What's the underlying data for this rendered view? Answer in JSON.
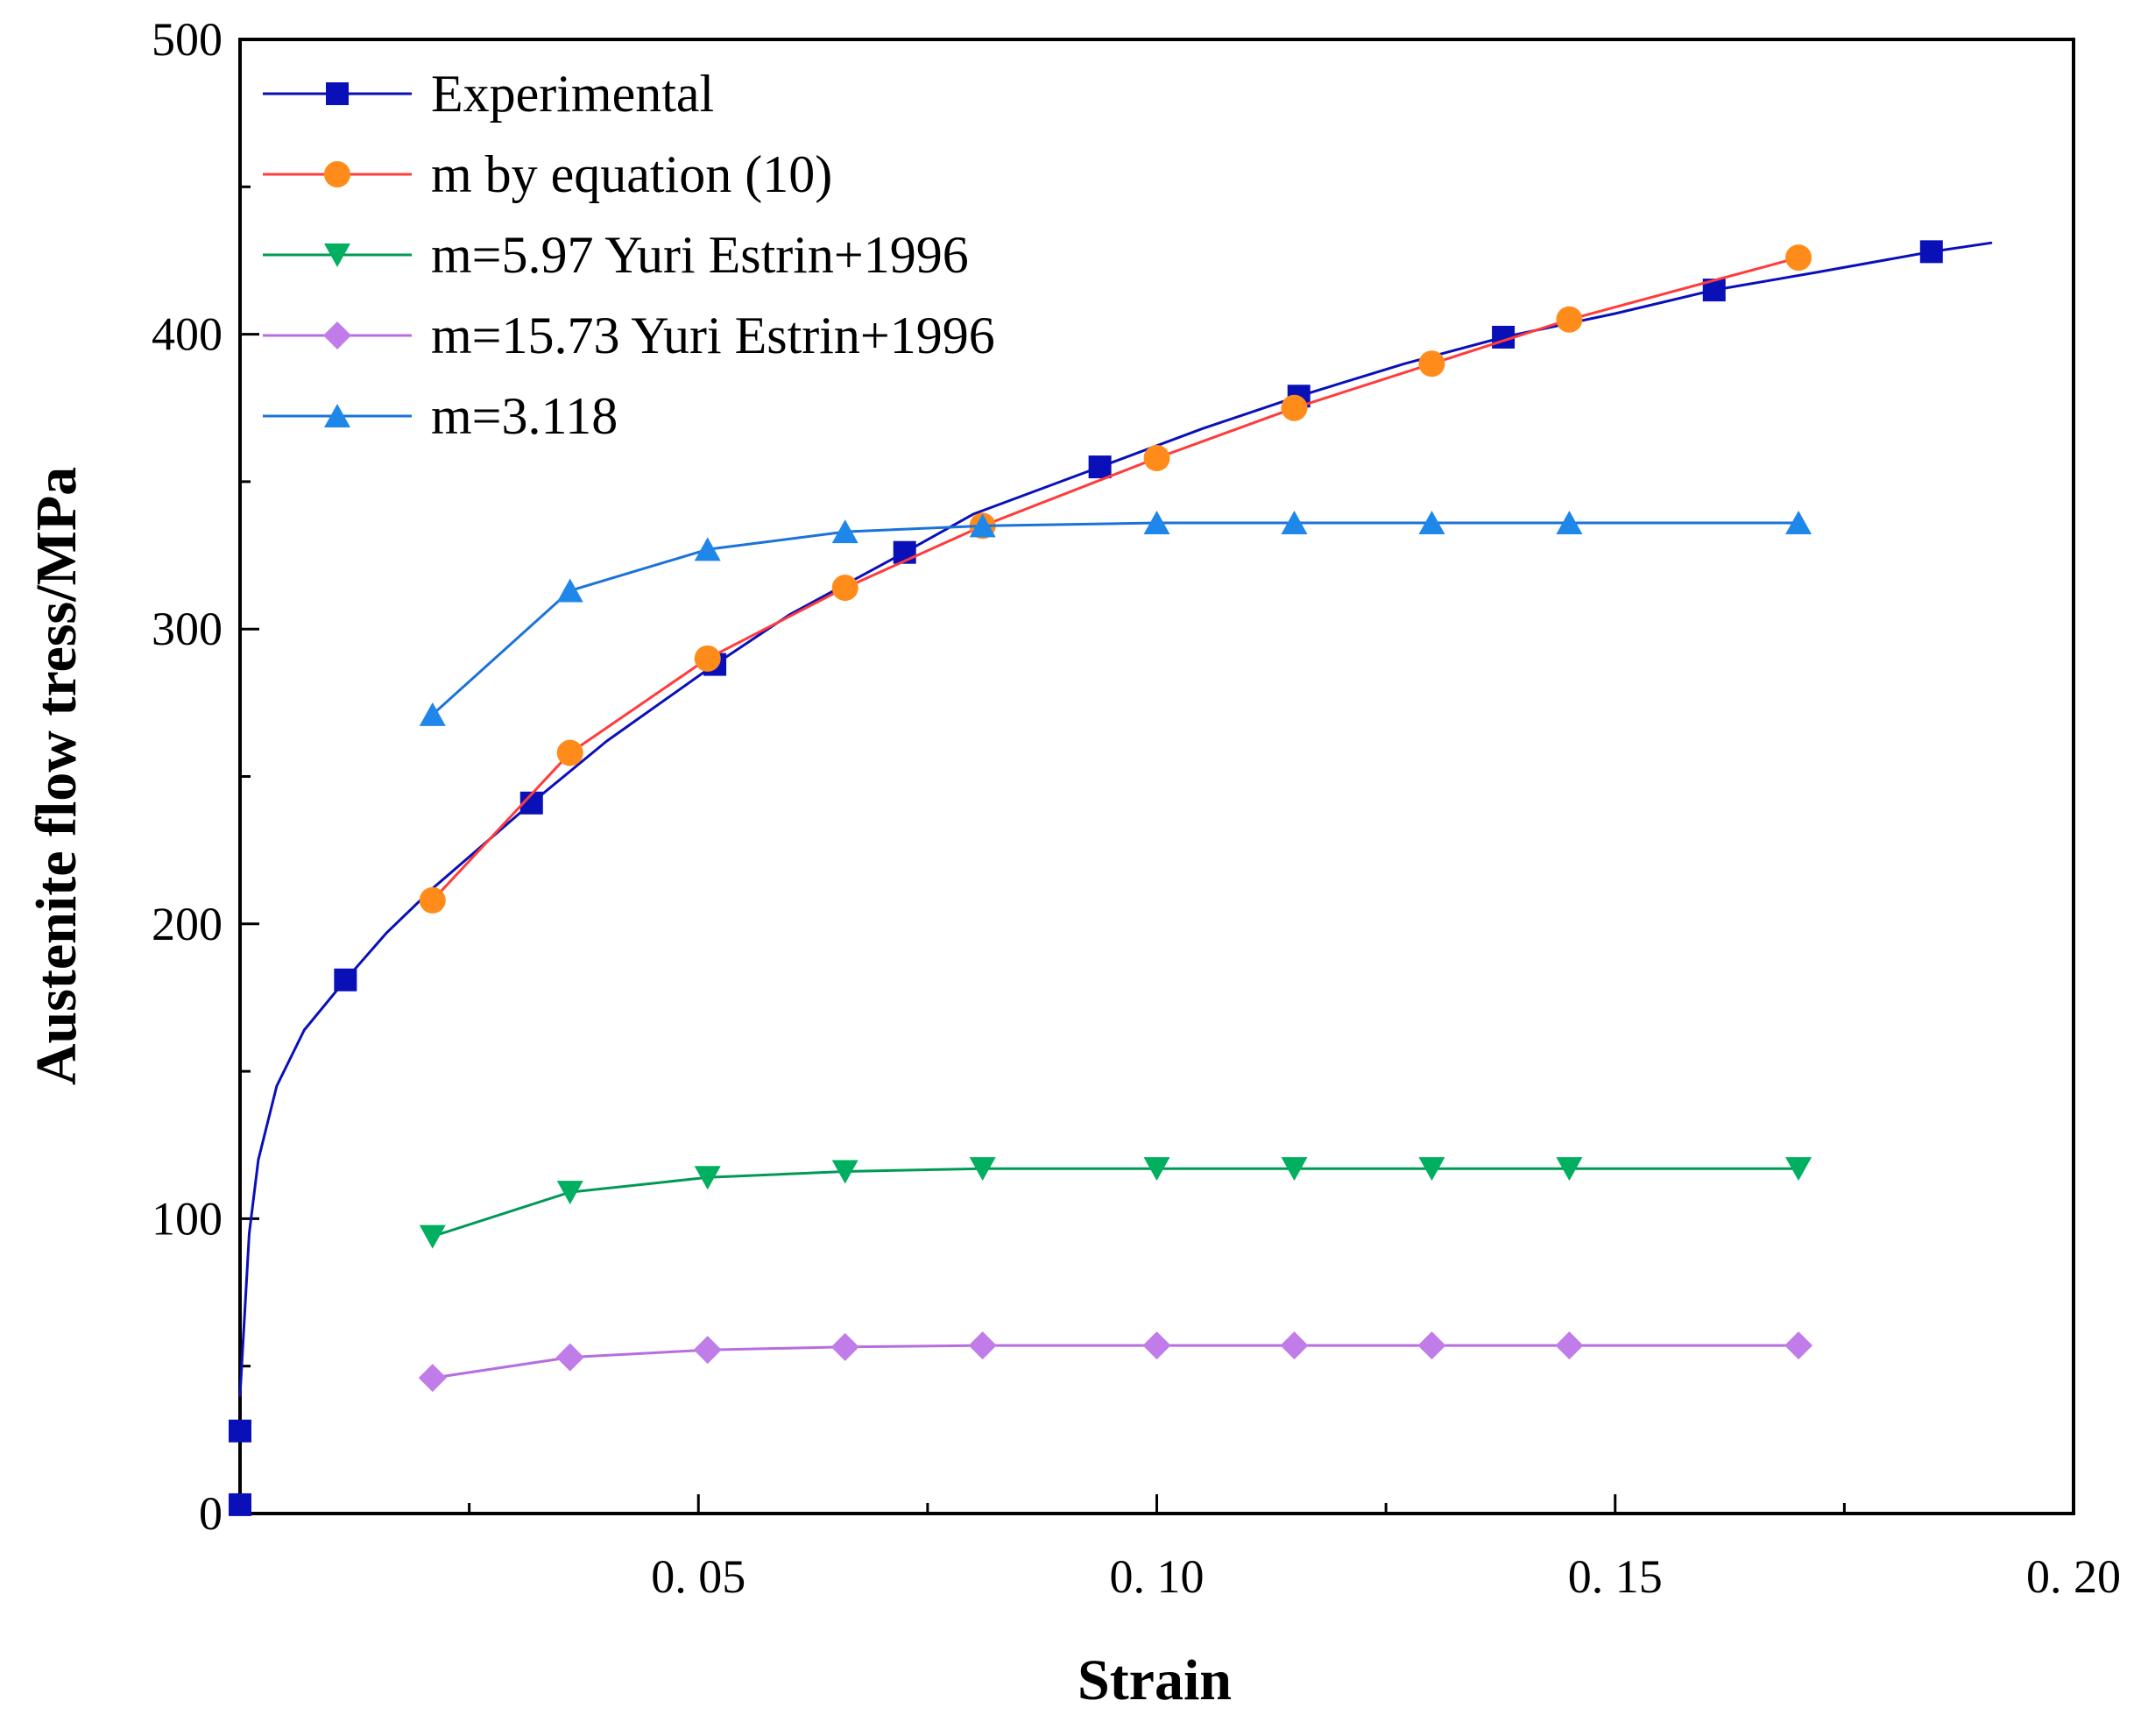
{
  "chart_data": {
    "type": "line",
    "title": "",
    "xlabel": "Strain",
    "ylabel": "Austenite flow tress/MPa",
    "xlim": [
      0,
      0.2
    ],
    "ylim": [
      0,
      500
    ],
    "x_ticks": [
      0.05,
      0.1,
      0.15,
      0.2
    ],
    "x_tick_labels": [
      "0. 05",
      "0. 10",
      "0. 15",
      "0. 20"
    ],
    "y_ticks": [
      0,
      100,
      200,
      300,
      400,
      500
    ],
    "y_tick_labels": [
      "0",
      "100",
      "200",
      "300",
      "400",
      "500"
    ],
    "grid": false,
    "legend_position": "top-left",
    "series": [
      {
        "name": "Experimental",
        "color": "#0a10b8",
        "marker": "square",
        "x": [
          0.0,
          0.0,
          0.0115,
          0.0318,
          0.0518,
          0.0725,
          0.0938,
          0.1155,
          0.1378,
          0.1608,
          0.1845
        ],
        "y": [
          3,
          28,
          181,
          241,
          288,
          326,
          355,
          379,
          399,
          415,
          428
        ],
        "curve_x": [
          0.0,
          0.001,
          0.002,
          0.004,
          0.007,
          0.0115,
          0.016,
          0.021,
          0.0318,
          0.04,
          0.0518,
          0.06,
          0.0725,
          0.08,
          0.0938,
          0.105,
          0.1155,
          0.127,
          0.1378,
          0.15,
          0.1608,
          0.172,
          0.1845,
          0.191
        ],
        "curve_y": [
          40,
          95,
          120,
          145,
          164,
          181,
          197,
          212,
          241,
          262,
          288,
          305,
          326,
          339,
          355,
          368,
          379,
          390,
          399,
          407,
          415,
          421,
          428,
          431
        ]
      },
      {
        "name": "m by equation (10)",
        "color": "#ff3c3c",
        "marker_color": "#ff8c1a",
        "marker": "circle",
        "x": [
          0.021,
          0.036,
          0.051,
          0.066,
          0.081,
          0.1,
          0.115,
          0.13,
          0.145,
          0.17
        ],
        "y": [
          208,
          258,
          290,
          314,
          335,
          358,
          375,
          390,
          405,
          426
        ]
      },
      {
        "name": "m=5.97 Yuri Estrin+1996",
        "color": "#009a55",
        "marker_color": "#00b060",
        "marker": "triangle-down",
        "x": [
          0.021,
          0.036,
          0.051,
          0.066,
          0.081,
          0.1,
          0.115,
          0.13,
          0.145,
          0.17
        ],
        "y": [
          94,
          109,
          114,
          116,
          117,
          117,
          117,
          117,
          117,
          117
        ]
      },
      {
        "name": "m=15.73 Yuri Estrin+1996",
        "color": "#b56ee0",
        "marker_color": "#c07ce8",
        "marker": "diamond",
        "x": [
          0.021,
          0.036,
          0.051,
          0.066,
          0.081,
          0.1,
          0.115,
          0.13,
          0.145,
          0.17
        ],
        "y": [
          46,
          53,
          55.5,
          56.5,
          57,
          57,
          57,
          57,
          57,
          57
        ]
      },
      {
        "name": "m=3.118",
        "color": "#1a73d9",
        "marker_color": "#1f86ea",
        "marker": "triangle-up",
        "x": [
          0.021,
          0.036,
          0.051,
          0.066,
          0.081,
          0.1,
          0.115,
          0.13,
          0.145,
          0.17
        ],
        "y": [
          271,
          313,
          327,
          333,
          335,
          336,
          336,
          336,
          336,
          336
        ]
      }
    ]
  }
}
